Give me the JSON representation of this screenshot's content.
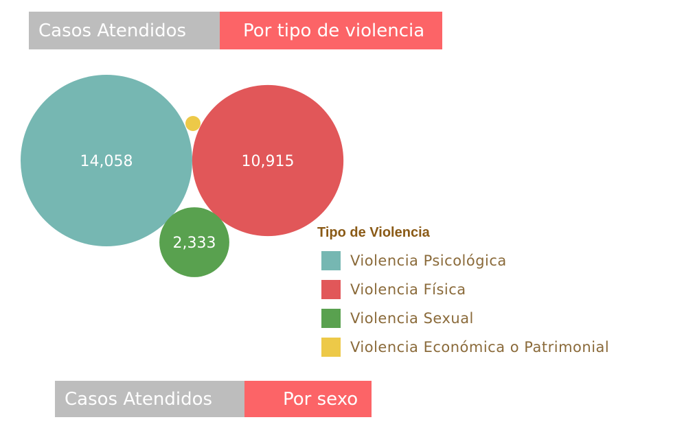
{
  "header_top": {
    "left": "Casos Atendidos",
    "right": "Por tipo de violencia"
  },
  "header_bottom": {
    "left": "Casos Atendidos",
    "right": "Por sexo"
  },
  "chart_data": {
    "type": "bubble",
    "legend": {
      "title": "Tipo de Violencia",
      "placement": "right"
    },
    "series": [
      {
        "name": "Violencia Psicológica",
        "value": 14058,
        "label": "14,058",
        "color": "#76b7b2"
      },
      {
        "name": "Violencia Física",
        "value": 10915,
        "label": "10,915",
        "color": "#e15759"
      },
      {
        "name": "Violencia Sexual",
        "value": 2333,
        "label": "2,333",
        "color": "#59a14f"
      },
      {
        "name": "Violencia Económica o Patrimonial",
        "value": null,
        "label": "",
        "color": "#edc948"
      }
    ]
  }
}
